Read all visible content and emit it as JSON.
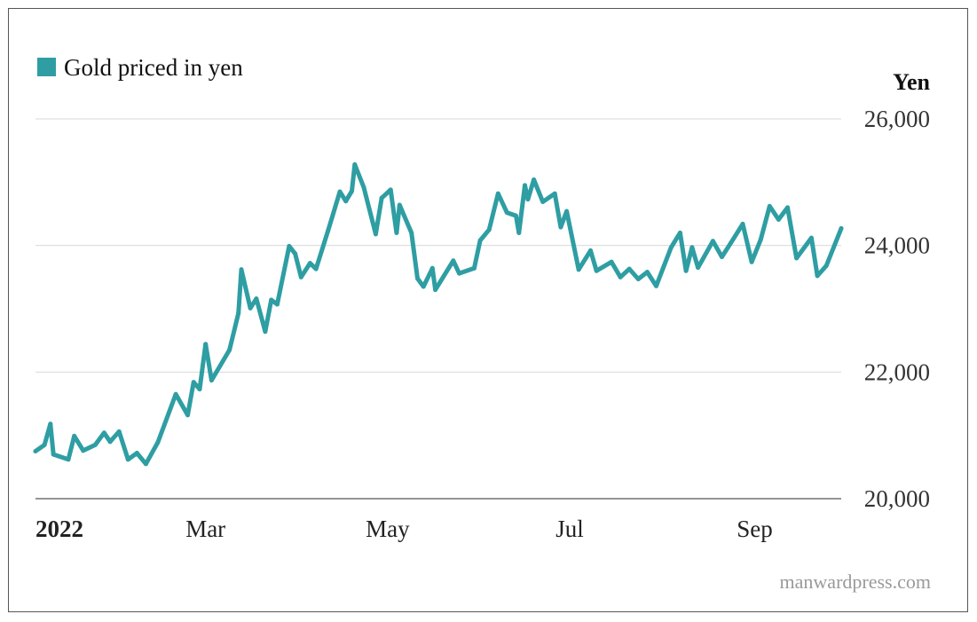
{
  "legend": {
    "label": "Gold priced in yen",
    "color": "#2e9ea3"
  },
  "footer": {
    "credit": "manwardpress.com"
  },
  "chart_data": {
    "type": "line",
    "title": "",
    "xlabel": "",
    "ylabel": "Yen",
    "ylim": [
      20000,
      26000
    ],
    "y_ticks": [
      20000,
      22000,
      24000,
      26000
    ],
    "y_tick_labels": [
      "20,000",
      "22,000",
      "24,000",
      "26,000"
    ],
    "x_range": [
      "2022-01-03",
      "2022-09-30"
    ],
    "x_ticks": [
      {
        "date": "2022-01-03",
        "label": "2022"
      },
      {
        "date": "2022-03-01",
        "label": "Mar"
      },
      {
        "date": "2022-05-01",
        "label": "May"
      },
      {
        "date": "2022-07-01",
        "label": "Jul"
      },
      {
        "date": "2022-09-01",
        "label": "Sep"
      }
    ],
    "grid": true,
    "legend_position": "top-left",
    "series": [
      {
        "name": "Gold priced in yen",
        "color": "#2e9ea3",
        "points": [
          [
            "2022-01-03",
            20750
          ],
          [
            "2022-01-06",
            20850
          ],
          [
            "2022-01-08",
            21180
          ],
          [
            "2022-01-09",
            20700
          ],
          [
            "2022-01-14",
            20620
          ],
          [
            "2022-01-16",
            20990
          ],
          [
            "2022-01-19",
            20760
          ],
          [
            "2022-01-23",
            20850
          ],
          [
            "2022-01-26",
            21040
          ],
          [
            "2022-01-28",
            20900
          ],
          [
            "2022-01-31",
            21060
          ],
          [
            "2022-02-03",
            20620
          ],
          [
            "2022-02-06",
            20720
          ],
          [
            "2022-02-09",
            20550
          ],
          [
            "2022-02-13",
            20890
          ],
          [
            "2022-02-19",
            21650
          ],
          [
            "2022-02-23",
            21320
          ],
          [
            "2022-02-25",
            21840
          ],
          [
            "2022-02-27",
            21730
          ],
          [
            "2022-03-01",
            22440
          ],
          [
            "2022-03-03",
            21870
          ],
          [
            "2022-03-09",
            22350
          ],
          [
            "2022-03-12",
            22930
          ],
          [
            "2022-03-13",
            23620
          ],
          [
            "2022-03-16",
            23010
          ],
          [
            "2022-03-18",
            23160
          ],
          [
            "2022-03-21",
            22640
          ],
          [
            "2022-03-23",
            23140
          ],
          [
            "2022-03-25",
            23070
          ],
          [
            "2022-03-29",
            23990
          ],
          [
            "2022-03-31",
            23870
          ],
          [
            "2022-04-02",
            23500
          ],
          [
            "2022-04-05",
            23720
          ],
          [
            "2022-04-07",
            23630
          ],
          [
            "2022-04-11",
            24230
          ],
          [
            "2022-04-15",
            24850
          ],
          [
            "2022-04-17",
            24700
          ],
          [
            "2022-04-19",
            24860
          ],
          [
            "2022-04-20",
            25280
          ],
          [
            "2022-04-23",
            24920
          ],
          [
            "2022-04-27",
            24180
          ],
          [
            "2022-04-29",
            24750
          ],
          [
            "2022-05-02",
            24880
          ],
          [
            "2022-05-04",
            24200
          ],
          [
            "2022-05-05",
            24640
          ],
          [
            "2022-05-09",
            24200
          ],
          [
            "2022-05-11",
            23480
          ],
          [
            "2022-05-13",
            23350
          ],
          [
            "2022-05-16",
            23640
          ],
          [
            "2022-05-17",
            23300
          ],
          [
            "2022-05-23",
            23760
          ],
          [
            "2022-05-25",
            23560
          ],
          [
            "2022-05-30",
            23640
          ],
          [
            "2022-06-01",
            24080
          ],
          [
            "2022-06-04",
            24250
          ],
          [
            "2022-06-07",
            24820
          ],
          [
            "2022-06-10",
            24520
          ],
          [
            "2022-06-13",
            24470
          ],
          [
            "2022-06-14",
            24200
          ],
          [
            "2022-06-16",
            24950
          ],
          [
            "2022-06-17",
            24730
          ],
          [
            "2022-06-19",
            25040
          ],
          [
            "2022-06-22",
            24690
          ],
          [
            "2022-06-26",
            24820
          ],
          [
            "2022-06-28",
            24290
          ],
          [
            "2022-06-30",
            24540
          ],
          [
            "2022-07-04",
            23620
          ],
          [
            "2022-07-08",
            23920
          ],
          [
            "2022-07-10",
            23600
          ],
          [
            "2022-07-15",
            23740
          ],
          [
            "2022-07-18",
            23500
          ],
          [
            "2022-07-21",
            23630
          ],
          [
            "2022-07-24",
            23470
          ],
          [
            "2022-07-27",
            23580
          ],
          [
            "2022-07-30",
            23360
          ],
          [
            "2022-08-04",
            23970
          ],
          [
            "2022-08-07",
            24200
          ],
          [
            "2022-08-09",
            23600
          ],
          [
            "2022-08-11",
            23970
          ],
          [
            "2022-08-13",
            23650
          ],
          [
            "2022-08-18",
            24070
          ],
          [
            "2022-08-21",
            23820
          ],
          [
            "2022-08-24",
            24040
          ],
          [
            "2022-08-28",
            24340
          ],
          [
            "2022-08-31",
            23740
          ],
          [
            "2022-09-03",
            24090
          ],
          [
            "2022-09-06",
            24620
          ],
          [
            "2022-09-09",
            24410
          ],
          [
            "2022-09-12",
            24600
          ],
          [
            "2022-09-15",
            23800
          ],
          [
            "2022-09-20",
            24120
          ],
          [
            "2022-09-22",
            23520
          ],
          [
            "2022-09-25",
            23680
          ],
          [
            "2022-09-30",
            24270
          ]
        ]
      }
    ]
  }
}
